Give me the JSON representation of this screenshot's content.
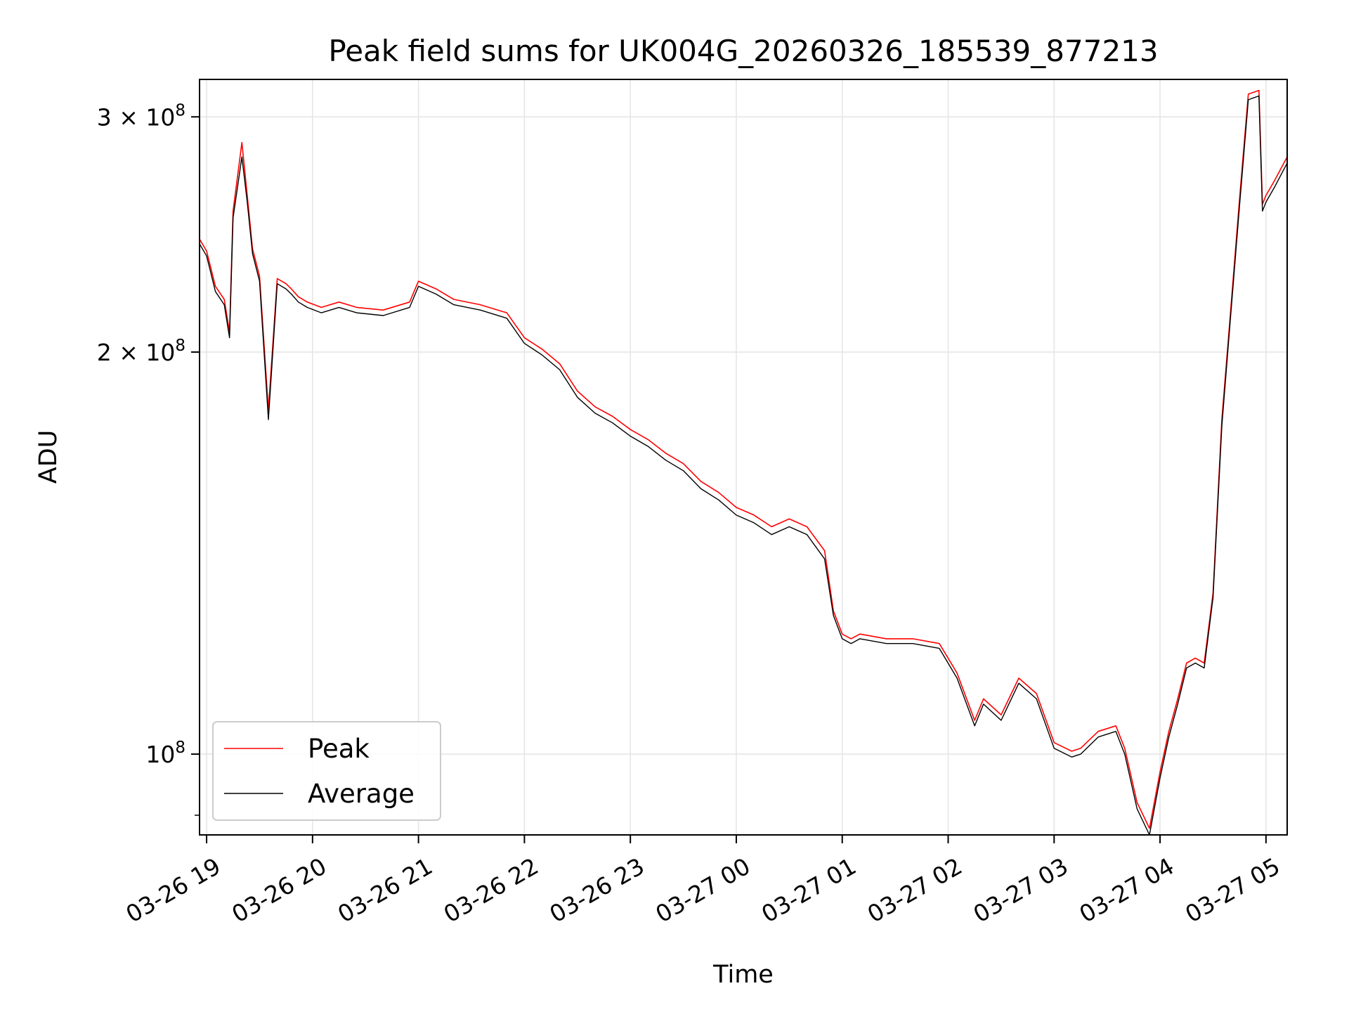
{
  "chart_data": {
    "type": "line",
    "title": "Peak field sums for UK004G_20260326_185539_877213",
    "xlabel": "Time",
    "ylabel": "ADU",
    "y_scale": "log",
    "ylim": [
      87000000,
      320000000
    ],
    "xlim": [
      "2026-03-26 18:56",
      "2026-03-27 05:12"
    ],
    "grid": true,
    "legend_position": "lower-left",
    "x_ticks": [
      "03-26 19",
      "03-26 20",
      "03-26 21",
      "03-26 22",
      "03-26 23",
      "03-27 00",
      "03-27 01",
      "03-27 02",
      "03-27 03",
      "03-27 04",
      "03-27 05"
    ],
    "y_ticks": [
      {
        "value": 100000000,
        "mantissa": "",
        "base": "10",
        "exp": "8"
      },
      {
        "value": 200000000,
        "mantissa": "2",
        "base": "10",
        "exp": "8"
      },
      {
        "value": 300000000,
        "mantissa": "3",
        "base": "10",
        "exp": "8"
      }
    ],
    "x": [
      "2026-03-26 18:56",
      "2026-03-26 19:00",
      "2026-03-26 19:05",
      "2026-03-26 19:10",
      "2026-03-26 19:13",
      "2026-03-26 19:15",
      "2026-03-26 19:20",
      "2026-03-26 19:23",
      "2026-03-26 19:26",
      "2026-03-26 19:30",
      "2026-03-26 19:35",
      "2026-03-26 19:40",
      "2026-03-26 19:45",
      "2026-03-26 19:48",
      "2026-03-26 19:52",
      "2026-03-26 19:57",
      "2026-03-26 20:05",
      "2026-03-26 20:15",
      "2026-03-26 20:25",
      "2026-03-26 20:40",
      "2026-03-26 20:55",
      "2026-03-26 21:00",
      "2026-03-26 21:10",
      "2026-03-26 21:20",
      "2026-03-26 21:35",
      "2026-03-26 21:50",
      "2026-03-26 22:00",
      "2026-03-26 22:10",
      "2026-03-26 22:20",
      "2026-03-26 22:30",
      "2026-03-26 22:40",
      "2026-03-26 22:50",
      "2026-03-26 23:00",
      "2026-03-26 23:10",
      "2026-03-26 23:20",
      "2026-03-26 23:30",
      "2026-03-26 23:40",
      "2026-03-26 23:50",
      "2026-03-27 00:00",
      "2026-03-27 00:10",
      "2026-03-27 00:20",
      "2026-03-27 00:30",
      "2026-03-27 00:40",
      "2026-03-27 00:50",
      "2026-03-27 00:55",
      "2026-03-27 01:00",
      "2026-03-27 01:05",
      "2026-03-27 01:10",
      "2026-03-27 01:25",
      "2026-03-27 01:40",
      "2026-03-27 01:55",
      "2026-03-27 02:05",
      "2026-03-27 02:15",
      "2026-03-27 02:20",
      "2026-03-27 02:30",
      "2026-03-27 02:40",
      "2026-03-27 02:50",
      "2026-03-27 03:00",
      "2026-03-27 03:10",
      "2026-03-27 03:15",
      "2026-03-27 03:25",
      "2026-03-27 03:35",
      "2026-03-27 03:40",
      "2026-03-27 03:47",
      "2026-03-27 03:54",
      "2026-03-27 04:00",
      "2026-03-27 04:05",
      "2026-03-27 04:10",
      "2026-03-27 04:15",
      "2026-03-27 04:20",
      "2026-03-27 04:25",
      "2026-03-27 04:30",
      "2026-03-27 04:35",
      "2026-03-27 04:40",
      "2026-03-27 04:45",
      "2026-03-27 04:50",
      "2026-03-27 04:53",
      "2026-03-27 04:56",
      "2026-03-27 04:58",
      "2026-03-27 05:00",
      "2026-03-27 05:05",
      "2026-03-27 05:12"
    ],
    "series": [
      {
        "name": "Peak",
        "color": "#ff0000",
        "values": [
          243000000,
          238000000,
          224000000,
          219000000,
          207000000,
          255000000,
          287000000,
          262000000,
          239000000,
          228000000,
          181000000,
          227000000,
          225000000,
          223000000,
          220000000,
          218000000,
          216000000,
          218000000,
          216000000,
          215000000,
          218000000,
          226000000,
          223000000,
          219000000,
          217000000,
          214000000,
          205000000,
          201000000,
          196000000,
          187000000,
          182000000,
          179000000,
          175000000,
          172000000,
          168000000,
          165000000,
          160000000,
          157000000,
          153000000,
          151000000,
          148000000,
          150000000,
          148000000,
          142000000,
          128000000,
          123000000,
          122000000,
          123000000,
          122000000,
          122000000,
          121000000,
          115000000,
          106000000,
          110000000,
          107000000,
          114000000,
          111000000,
          102000000,
          100500000,
          101000000,
          104000000,
          105000000,
          101000000,
          92000000,
          88000000,
          97000000,
          104000000,
          110000000,
          117000000,
          118000000,
          117000000,
          132000000,
          178000000,
          215000000,
          260000000,
          312000000,
          313000000,
          314000000,
          258000000,
          262000000,
          269000000,
          280000000
        ]
      },
      {
        "name": "Average",
        "color": "#000000",
        "values": [
          241000000,
          236000000,
          222000000,
          217000000,
          205000000,
          252000000,
          280000000,
          259000000,
          237000000,
          226000000,
          178000000,
          225000000,
          223000000,
          221000000,
          218000000,
          216000000,
          214000000,
          216000000,
          214000000,
          213000000,
          216000000,
          224000000,
          221000000,
          217000000,
          215000000,
          212000000,
          203000000,
          199000000,
          194000000,
          185000000,
          180000000,
          177000000,
          173000000,
          170000000,
          166000000,
          163000000,
          158000000,
          155000000,
          151000000,
          149000000,
          146000000,
          148000000,
          146000000,
          140000000,
          127000000,
          122000000,
          121000000,
          122000000,
          121000000,
          121000000,
          120000000,
          114000000,
          105000000,
          109000000,
          106000000,
          113000000,
          110000000,
          101000000,
          99500000,
          100000000,
          103000000,
          104000000,
          100000000,
          91000000,
          87000000,
          96000000,
          103000000,
          109000000,
          116000000,
          117000000,
          116000000,
          131000000,
          176000000,
          213000000,
          257000000,
          309000000,
          310000000,
          311000000,
          255000000,
          259000000,
          266000000,
          277000000
        ]
      }
    ]
  }
}
